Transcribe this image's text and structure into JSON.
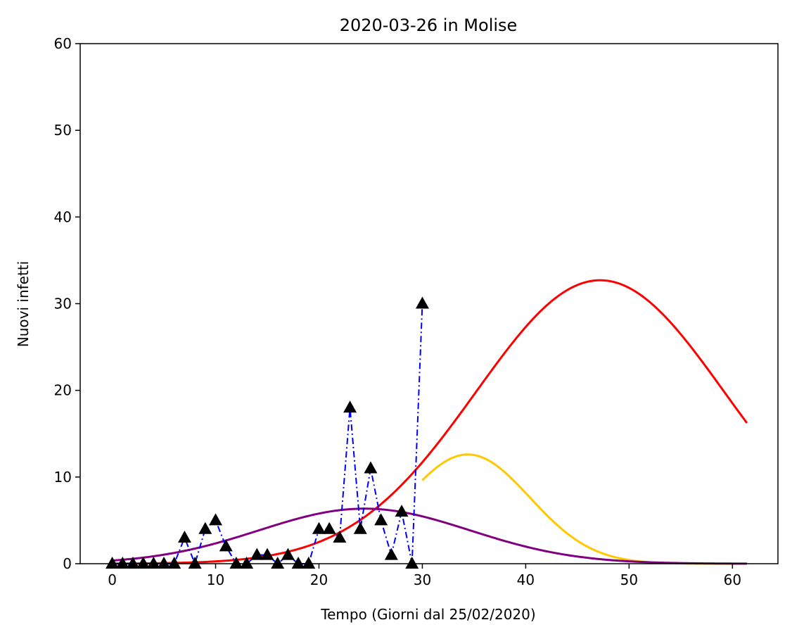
{
  "chart_data": {
    "type": "line",
    "title": "2020-03-26 in Molise",
    "xlabel": "Tempo (Giorni dal 25/02/2020)",
    "ylabel": "Nuovi infetti",
    "xlim": [
      -3.1,
      64.4
    ],
    "ylim": [
      0,
      60
    ],
    "xticks": [
      0,
      10,
      20,
      30,
      40,
      50,
      60
    ],
    "yticks": [
      0,
      10,
      20,
      30,
      40,
      50,
      60
    ],
    "grid": false,
    "observed": {
      "x": [
        0,
        1,
        2,
        3,
        4,
        5,
        6,
        7,
        8,
        9,
        10,
        11,
        12,
        13,
        14,
        15,
        16,
        17,
        18,
        19,
        20,
        21,
        22,
        23,
        24,
        25,
        26,
        27,
        28,
        29,
        30
      ],
      "y": [
        0,
        0,
        0,
        0,
        0,
        0,
        0,
        3,
        0,
        4,
        5,
        2,
        0,
        0,
        1,
        1,
        0,
        1,
        0,
        0,
        4,
        4,
        3,
        18,
        4,
        11,
        5,
        1,
        6,
        0,
        30
      ],
      "color": "#0000ff",
      "marker_color": "#000000"
    },
    "series": [
      {
        "color": "#ff0000",
        "model": "gaussian",
        "peak": 32.7,
        "center": 47.2,
        "sigma": 12.0,
        "x_range": [
          0,
          61.4
        ]
      },
      {
        "color": "#ffc800",
        "model": "gaussian",
        "peak": 12.6,
        "center": 34.4,
        "sigma": 6.0,
        "x_range": [
          30,
          61.4
        ]
      },
      {
        "color": "#800080",
        "model": "gaussian",
        "peak": 6.35,
        "center": 24.4,
        "sigma": 10.2,
        "x_range": [
          0,
          61.4
        ]
      }
    ]
  }
}
